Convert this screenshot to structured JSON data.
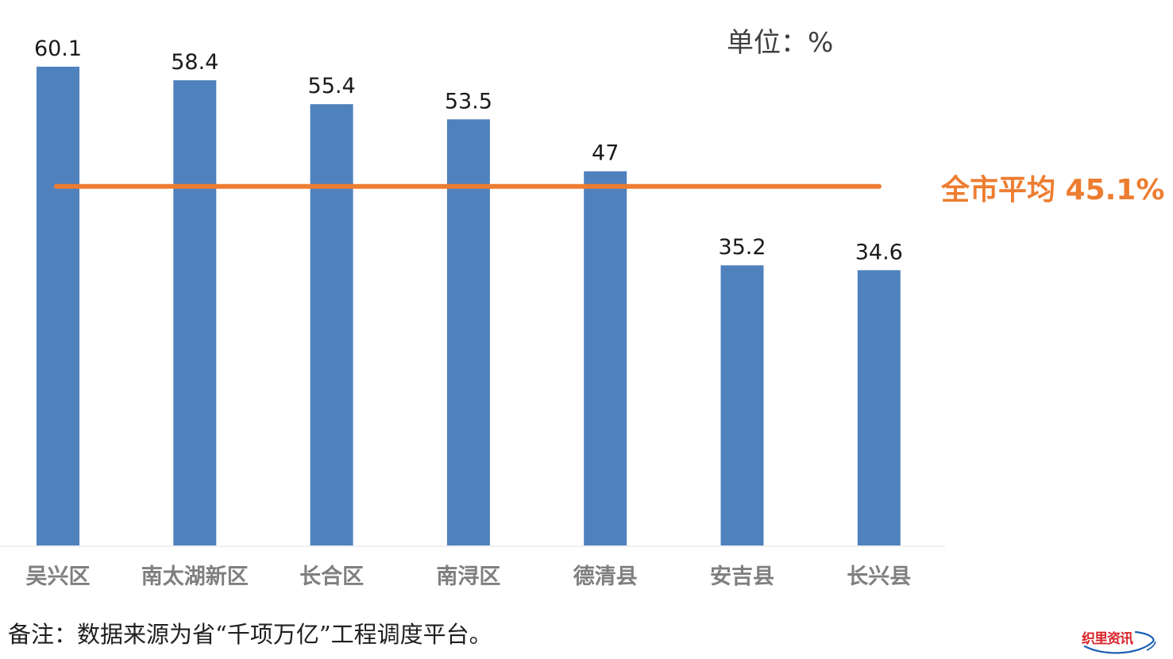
{
  "chart_data": {
    "type": "bar",
    "categories": [
      "吴兴区",
      "南太湖新区",
      "长合区",
      "南浔区",
      "德清县",
      "安吉县",
      "长兴县"
    ],
    "values": [
      60.1,
      58.4,
      55.4,
      53.5,
      47,
      35.2,
      34.6
    ],
    "value_labels": [
      "60.1",
      "58.4",
      "55.4",
      "53.5",
      "47",
      "35.2",
      "34.6"
    ],
    "unit_label": "单位：%",
    "reference_line": {
      "value": 45.1,
      "label": "全市平均 45.1%"
    },
    "ylim": [
      0,
      60.1
    ],
    "grid": false,
    "colors": {
      "bar": "#4F81BD",
      "reference_line": "#ED7D31",
      "category_label": "#7F7F7F",
      "value_label": "#1A1A1A"
    }
  },
  "footnote": "备注：数据来源为省“千项万亿”工程调度平台。",
  "logo": {
    "text": "织里资讯"
  }
}
